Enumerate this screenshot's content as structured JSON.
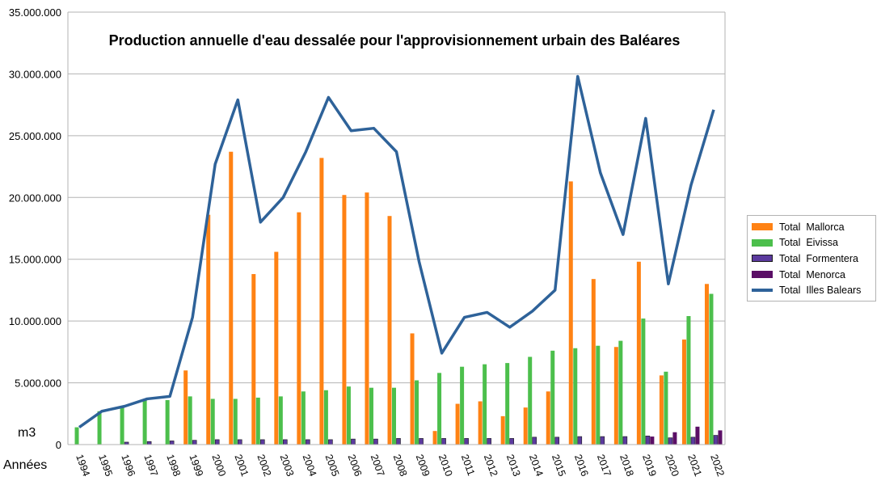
{
  "chart_data": {
    "type": "bar",
    "title": "Production annuelle d'eau dessalée pour l'approvisionnement urbain des Baléares",
    "ylabel": "m3",
    "xlabel": "Années",
    "ylim": [
      0,
      35000000
    ],
    "yticks": [
      "0",
      "5.000.000",
      "10.000.000",
      "15.000.000",
      "20.000.000",
      "25.000.000",
      "30.000.000",
      "35.000.000"
    ],
    "grid": true,
    "legend_position": "right",
    "categories": [
      "1994",
      "1995",
      "1996",
      "1997",
      "1998",
      "1999",
      "2000",
      "2001",
      "2002",
      "2003",
      "2004",
      "2005",
      "2006",
      "2007",
      "2008",
      "2009",
      "2010",
      "2011",
      "2012",
      "2013",
      "2014",
      "2015",
      "2016",
      "2017",
      "2018",
      "2019",
      "2020",
      "2021",
      "2022"
    ],
    "series": [
      {
        "name": "Total  Mallorca",
        "kind": "bar",
        "color": "#ff8214",
        "stroke": "#ff8214",
        "values": [
          0,
          0,
          0,
          0,
          0,
          6000000,
          18600000,
          23700000,
          13800000,
          15600000,
          18800000,
          23200000,
          20200000,
          20400000,
          18500000,
          9000000,
          1100000,
          3300000,
          3500000,
          2300000,
          3000000,
          4300000,
          21300000,
          13400000,
          7900000,
          14800000,
          5600000,
          8500000,
          13000000
        ]
      },
      {
        "name": "Total  Eivissa",
        "kind": "bar",
        "color": "#4cbf4c",
        "stroke": "#4cbf4c",
        "values": [
          1400000,
          2700000,
          3000000,
          3600000,
          3600000,
          3900000,
          3700000,
          3700000,
          3800000,
          3900000,
          4300000,
          4400000,
          4700000,
          4600000,
          4600000,
          5200000,
          5800000,
          6300000,
          6500000,
          6600000,
          7100000,
          7600000,
          7800000,
          8000000,
          8400000,
          10200000,
          5900000,
          10400000,
          12200000
        ]
      },
      {
        "name": "Total  Formentera",
        "kind": "bar",
        "color": "#5b3a9e",
        "stroke": "#1a1a1a",
        "values": [
          0,
          0,
          200000,
          250000,
          300000,
          350000,
          400000,
          400000,
          400000,
          400000,
          400000,
          400000,
          450000,
          450000,
          500000,
          500000,
          500000,
          500000,
          500000,
          500000,
          600000,
          600000,
          650000,
          650000,
          650000,
          700000,
          550000,
          600000,
          750000
        ]
      },
      {
        "name": "Total  Menorca",
        "kind": "bar",
        "color": "#5b0f66",
        "stroke": "#5b0f66",
        "values": [
          0,
          0,
          0,
          0,
          0,
          0,
          0,
          0,
          0,
          0,
          0,
          0,
          0,
          0,
          0,
          0,
          0,
          0,
          0,
          0,
          0,
          0,
          0,
          0,
          0,
          650000,
          1000000,
          1450000,
          1150000
        ]
      },
      {
        "name": "Total  Illes Balears",
        "kind": "line",
        "color": "#2e6299",
        "stroke": "#2e6299",
        "values": [
          1400000,
          2700000,
          3100000,
          3700000,
          3900000,
          10300000,
          22700000,
          27900000,
          18000000,
          20000000,
          23700000,
          28100000,
          25400000,
          25600000,
          23700000,
          14800000,
          7400000,
          10300000,
          10700000,
          9500000,
          10800000,
          12500000,
          29800000,
          22000000,
          17000000,
          26400000,
          13000000,
          21000000,
          27100000
        ]
      }
    ]
  }
}
